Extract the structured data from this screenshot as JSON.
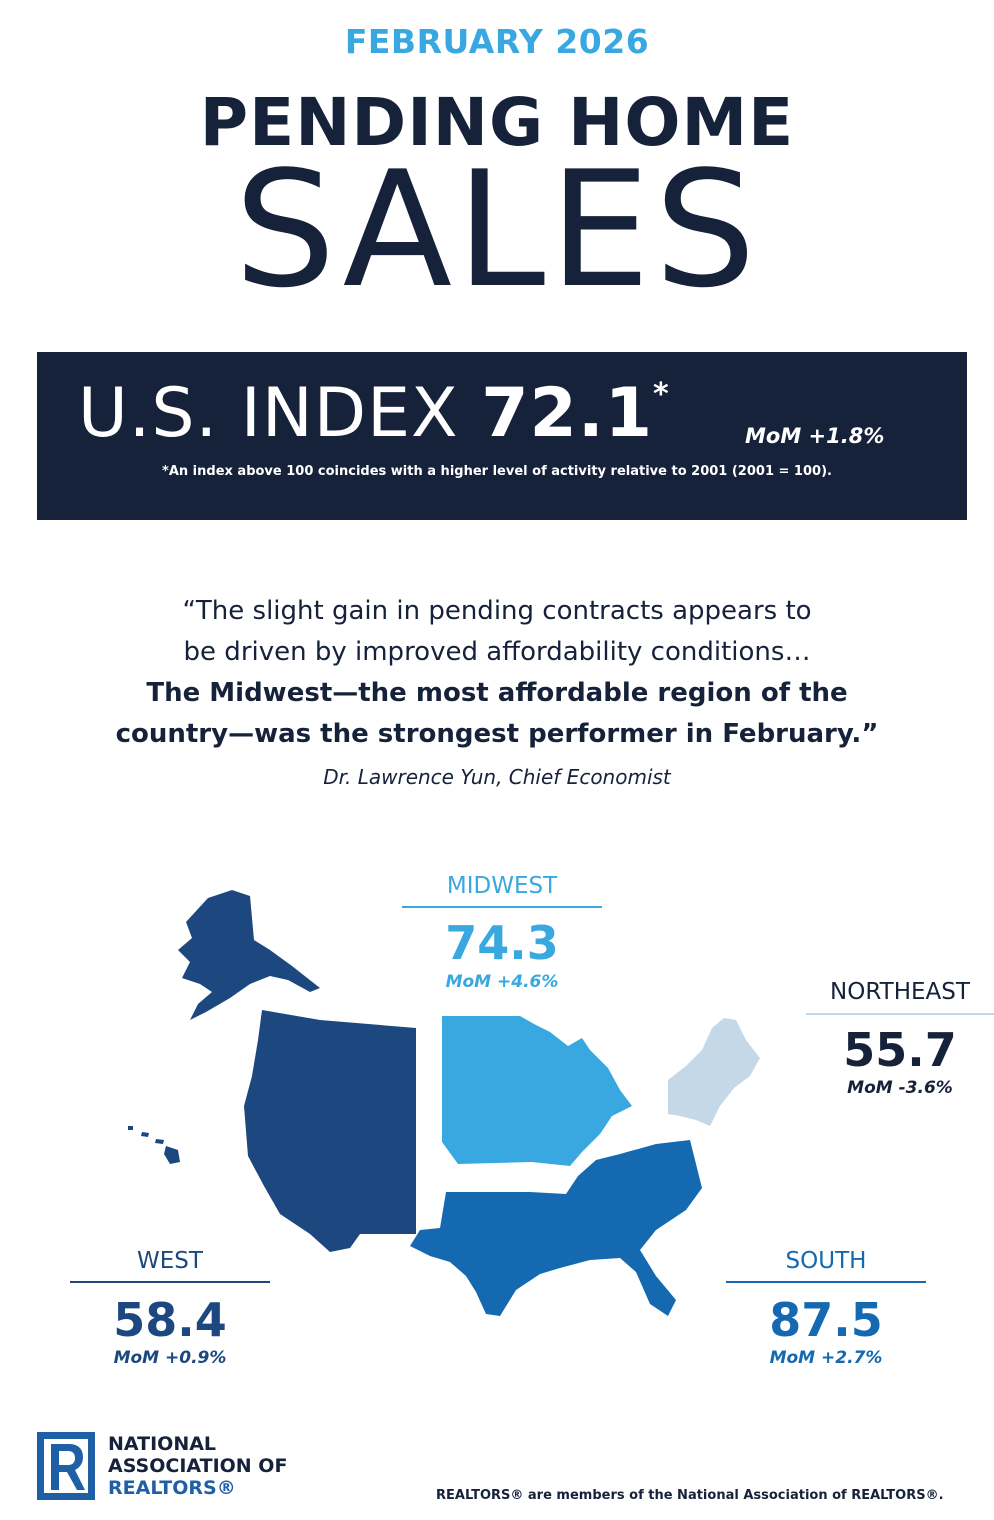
{
  "header": {
    "month": "FEBRUARY 2026",
    "title_line1": "PENDING HOME",
    "title_line2": "SALES"
  },
  "us_index": {
    "label": "U.S. INDEX ",
    "value": "72.1",
    "star": "*",
    "mom": "MoM +1.8%",
    "footnote": "*An index above 100 coincides with a higher level of activity relative to 2001 (2001 = 100)."
  },
  "quote": {
    "line1": "“The slight gain in pending contracts appears to",
    "line2": "be driven by improved affordability conditions…",
    "line3": "The Midwest—the most affordable region of the",
    "line4": "country—was the strongest performer in February.”",
    "attribution": "Dr. Lawrence Yun, Chief Economist"
  },
  "regions": {
    "midwest": {
      "name": "MIDWEST",
      "value": "74.3",
      "mom": "MoM +4.6%",
      "color": "#39a7e0"
    },
    "northeast": {
      "name": "NORTHEAST",
      "value": "55.7",
      "mom": "MoM -3.6%",
      "color": "#c4d8e8"
    },
    "west": {
      "name": "WEST",
      "value": "58.4",
      "mom": "MoM +0.9%",
      "color": "#1c477f"
    },
    "south": {
      "name": "SOUTH",
      "value": "87.5",
      "mom": "MoM +2.7%",
      "color": "#1469b0"
    }
  },
  "logo": {
    "line1": "NATIONAL",
    "line2": "ASSOCIATION OF",
    "line3": "REALTORS®",
    "icon": "realtor-r-logo"
  },
  "footer": {
    "text": "REALTORS® are members of the National Association of REALTORS®."
  },
  "colors": {
    "navy": "#16213a",
    "accent": "#39a7e0"
  }
}
